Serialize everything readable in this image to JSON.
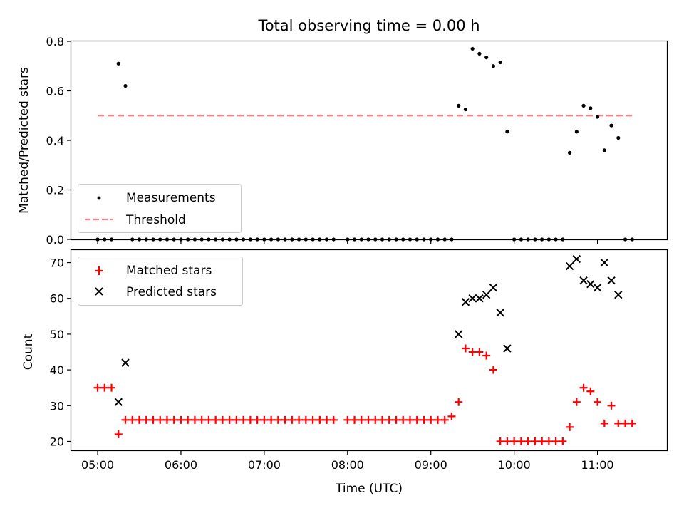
{
  "title": "Total observing time = 0.00 h",
  "chart_data": [
    {
      "type": "scatter",
      "panel": "top",
      "ylabel": "Matched/Predicted stars",
      "ylim": [
        0,
        0.8
      ],
      "yticks": [
        0.0,
        0.2,
        0.4,
        0.6,
        0.8
      ],
      "ytick_labels": [
        "0.0",
        "0.2",
        "0.4",
        "0.6",
        "0.8"
      ],
      "xlim": [
        "04:41",
        "11:50"
      ],
      "legend": "lower-left",
      "series": [
        {
          "name": "Measurements",
          "marker": "dot",
          "color": "#000000",
          "points": [
            [
              "05:00",
              0
            ],
            [
              "05:05",
              0
            ],
            [
              "05:10",
              0
            ],
            [
              "05:15",
              0.71
            ],
            [
              "05:20",
              0.62
            ],
            [
              "05:25",
              0
            ],
            [
              "05:30",
              0
            ],
            [
              "05:35",
              0
            ],
            [
              "05:40",
              0
            ],
            [
              "05:45",
              0
            ],
            [
              "05:50",
              0
            ],
            [
              "05:55",
              0
            ],
            [
              "06:00",
              0
            ],
            [
              "06:05",
              0
            ],
            [
              "06:10",
              0
            ],
            [
              "06:15",
              0
            ],
            [
              "06:20",
              0
            ],
            [
              "06:25",
              0
            ],
            [
              "06:30",
              0
            ],
            [
              "06:35",
              0
            ],
            [
              "06:40",
              0
            ],
            [
              "06:45",
              0
            ],
            [
              "06:50",
              0
            ],
            [
              "06:55",
              0
            ],
            [
              "07:00",
              0
            ],
            [
              "07:05",
              0
            ],
            [
              "07:10",
              0
            ],
            [
              "07:15",
              0
            ],
            [
              "07:20",
              0
            ],
            [
              "07:25",
              0
            ],
            [
              "07:30",
              0
            ],
            [
              "07:35",
              0
            ],
            [
              "07:40",
              0
            ],
            [
              "07:45",
              0
            ],
            [
              "07:50",
              0
            ],
            [
              "08:00",
              0
            ],
            [
              "08:05",
              0
            ],
            [
              "08:10",
              0
            ],
            [
              "08:15",
              0
            ],
            [
              "08:20",
              0
            ],
            [
              "08:25",
              0
            ],
            [
              "08:30",
              0
            ],
            [
              "08:35",
              0
            ],
            [
              "08:40",
              0
            ],
            [
              "08:45",
              0
            ],
            [
              "08:50",
              0
            ],
            [
              "08:55",
              0
            ],
            [
              "09:00",
              0
            ],
            [
              "09:05",
              0
            ],
            [
              "09:10",
              0
            ],
            [
              "09:15",
              0
            ],
            [
              "09:20",
              0.54
            ],
            [
              "09:25",
              0.525
            ],
            [
              "09:30",
              0.77
            ],
            [
              "09:35",
              0.75
            ],
            [
              "09:40",
              0.735
            ],
            [
              "09:45",
              0.7
            ],
            [
              "09:50",
              0.715
            ],
            [
              "09:55",
              0.435
            ],
            [
              "10:00",
              0
            ],
            [
              "10:05",
              0
            ],
            [
              "10:10",
              0
            ],
            [
              "10:15",
              0
            ],
            [
              "10:20",
              0
            ],
            [
              "10:25",
              0
            ],
            [
              "10:30",
              0
            ],
            [
              "10:35",
              0
            ],
            [
              "10:40",
              0.35
            ],
            [
              "10:45",
              0.435
            ],
            [
              "10:50",
              0.54
            ],
            [
              "10:55",
              0.53
            ],
            [
              "11:00",
              0.495
            ],
            [
              "11:05",
              0.36
            ],
            [
              "11:10",
              0.46
            ],
            [
              "11:15",
              0.41
            ],
            [
              "11:20",
              0
            ],
            [
              "11:25",
              0
            ]
          ]
        },
        {
          "name": "Threshold",
          "line": "dashed",
          "color": "#ff7f7f",
          "points": [
            [
              "05:00",
              0.5
            ],
            [
              "11:25",
              0.5
            ]
          ]
        }
      ]
    },
    {
      "type": "scatter",
      "panel": "bottom",
      "xlabel": "Time (UTC)",
      "ylabel": "Count",
      "ylim": [
        17.5,
        73.5
      ],
      "yticks": [
        20,
        30,
        40,
        50,
        60,
        70
      ],
      "xlim": [
        "04:41",
        "11:50"
      ],
      "xticks": [
        "05:00",
        "06:00",
        "07:00",
        "08:00",
        "09:00",
        "10:00",
        "11:00"
      ],
      "legend": "top-left",
      "series": [
        {
          "name": "Matched stars",
          "marker": "plus",
          "color": "#ff0000",
          "points": [
            [
              "05:00",
              35
            ],
            [
              "05:05",
              35
            ],
            [
              "05:10",
              35
            ],
            [
              "05:15",
              22
            ],
            [
              "05:20",
              26
            ],
            [
              "05:25",
              26
            ],
            [
              "05:30",
              26
            ],
            [
              "05:35",
              26
            ],
            [
              "05:40",
              26
            ],
            [
              "05:45",
              26
            ],
            [
              "05:50",
              26
            ],
            [
              "05:55",
              26
            ],
            [
              "06:00",
              26
            ],
            [
              "06:05",
              26
            ],
            [
              "06:10",
              26
            ],
            [
              "06:15",
              26
            ],
            [
              "06:20",
              26
            ],
            [
              "06:25",
              26
            ],
            [
              "06:30",
              26
            ],
            [
              "06:35",
              26
            ],
            [
              "06:40",
              26
            ],
            [
              "06:45",
              26
            ],
            [
              "06:50",
              26
            ],
            [
              "06:55",
              26
            ],
            [
              "07:00",
              26
            ],
            [
              "07:05",
              26
            ],
            [
              "07:10",
              26
            ],
            [
              "07:15",
              26
            ],
            [
              "07:20",
              26
            ],
            [
              "07:25",
              26
            ],
            [
              "07:30",
              26
            ],
            [
              "07:35",
              26
            ],
            [
              "07:40",
              26
            ],
            [
              "07:45",
              26
            ],
            [
              "07:50",
              26
            ],
            [
              "08:00",
              26
            ],
            [
              "08:05",
              26
            ],
            [
              "08:10",
              26
            ],
            [
              "08:15",
              26
            ],
            [
              "08:20",
              26
            ],
            [
              "08:25",
              26
            ],
            [
              "08:30",
              26
            ],
            [
              "08:35",
              26
            ],
            [
              "08:40",
              26
            ],
            [
              "08:45",
              26
            ],
            [
              "08:50",
              26
            ],
            [
              "08:55",
              26
            ],
            [
              "09:00",
              26
            ],
            [
              "09:05",
              26
            ],
            [
              "09:10",
              26
            ],
            [
              "09:15",
              27
            ],
            [
              "09:20",
              31
            ],
            [
              "09:25",
              46
            ],
            [
              "09:30",
              45
            ],
            [
              "09:35",
              45
            ],
            [
              "09:40",
              44
            ],
            [
              "09:45",
              40
            ],
            [
              "09:50",
              20
            ],
            [
              "09:55",
              20
            ],
            [
              "10:00",
              20
            ],
            [
              "10:05",
              20
            ],
            [
              "10:10",
              20
            ],
            [
              "10:15",
              20
            ],
            [
              "10:20",
              20
            ],
            [
              "10:25",
              20
            ],
            [
              "10:30",
              20
            ],
            [
              "10:35",
              20
            ],
            [
              "10:40",
              24
            ],
            [
              "10:45",
              31
            ],
            [
              "10:50",
              35
            ],
            [
              "10:55",
              34
            ],
            [
              "11:00",
              31
            ],
            [
              "11:05",
              25
            ],
            [
              "11:10",
              30
            ],
            [
              "11:15",
              25
            ],
            [
              "11:20",
              25
            ],
            [
              "11:25",
              25
            ]
          ]
        },
        {
          "name": "Predicted stars",
          "marker": "x",
          "color": "#000000",
          "points": [
            [
              "05:15",
              31
            ],
            [
              "05:20",
              42
            ],
            [
              "09:20",
              50
            ],
            [
              "09:25",
              59
            ],
            [
              "09:30",
              60
            ],
            [
              "09:35",
              60
            ],
            [
              "09:40",
              61
            ],
            [
              "09:45",
              63
            ],
            [
              "09:50",
              56
            ],
            [
              "09:55",
              46
            ],
            [
              "10:40",
              69
            ],
            [
              "10:45",
              71
            ],
            [
              "10:50",
              65
            ],
            [
              "10:55",
              64
            ],
            [
              "11:00",
              63
            ],
            [
              "11:05",
              70
            ],
            [
              "11:10",
              65
            ],
            [
              "11:15",
              61
            ]
          ]
        }
      ]
    }
  ]
}
